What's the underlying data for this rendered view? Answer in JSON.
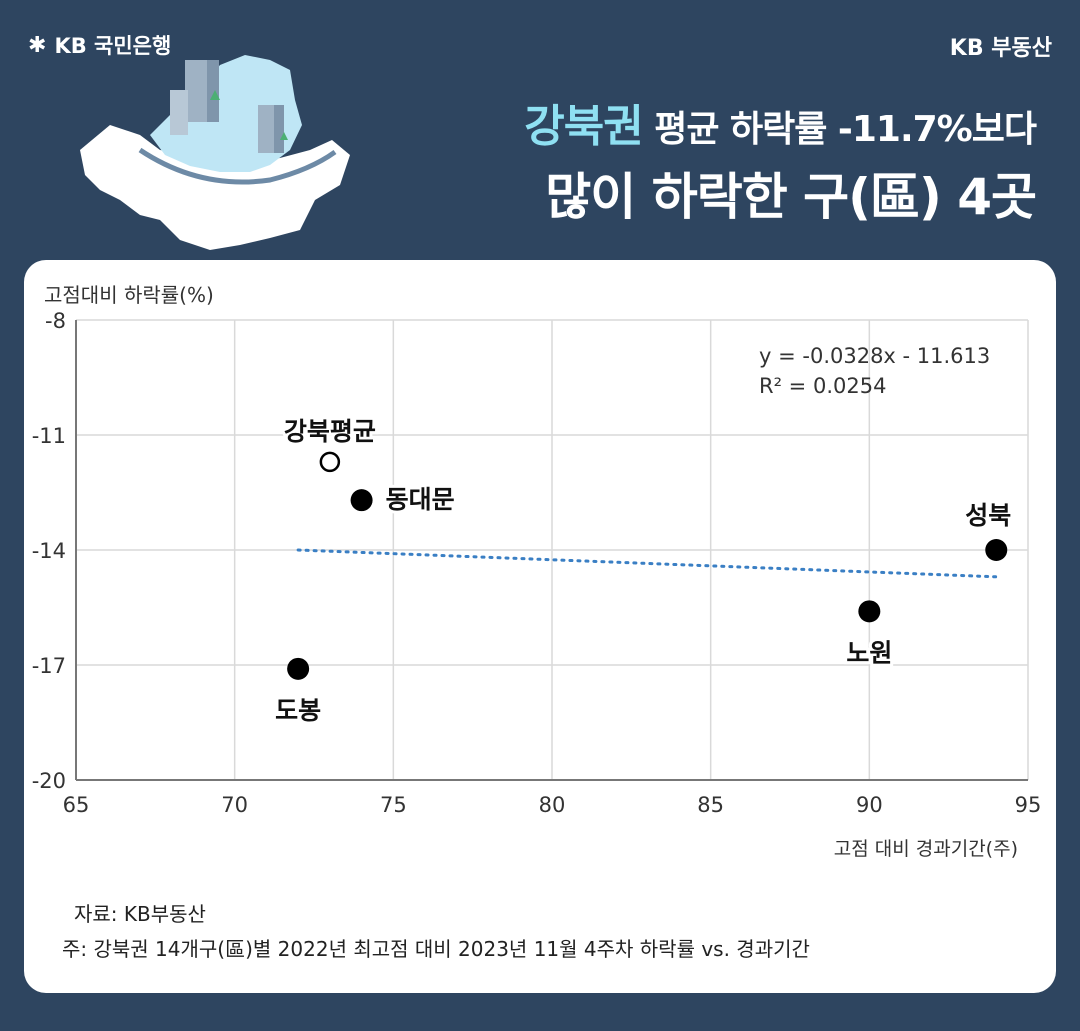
{
  "header": {
    "logo_text": "KB 국민은행",
    "brand": "KB 부동산",
    "title_highlight": "강북권",
    "title_line1_rest": " 평균 하락률 -11.7%보다",
    "title_line2": "많이 하락한 구(區) 4곳"
  },
  "colors": {
    "background": "#2e4560",
    "highlight": "#8fe0f2",
    "trendline": "#3a7fc4",
    "point": "#000000"
  },
  "chart_data": {
    "type": "scatter",
    "ylabel": "고점대비 하락률(%)",
    "xlabel": "고점 대비 경과기간(주)",
    "xlim": [
      65,
      95
    ],
    "ylim": [
      -20,
      -8
    ],
    "x_ticks": [
      65,
      70,
      75,
      80,
      85,
      90,
      95
    ],
    "y_ticks": [
      -8,
      -11,
      -14,
      -17,
      -20
    ],
    "grid": true,
    "points": [
      {
        "label": "강북평균",
        "x": 73,
        "y": -11.7,
        "hollow": true
      },
      {
        "label": "동대문",
        "x": 74,
        "y": -12.7,
        "hollow": false
      },
      {
        "label": "도봉",
        "x": 72,
        "y": -17.1,
        "hollow": false
      },
      {
        "label": "노원",
        "x": 90,
        "y": -15.6,
        "hollow": false
      },
      {
        "label": "성북",
        "x": 94,
        "y": -14.0,
        "hollow": false
      }
    ],
    "trendline": {
      "x_start": 72,
      "x_end": 94
    },
    "equation": "y = -0.0328x - 11.613",
    "r_squared": "R² = 0.0254"
  },
  "footer": {
    "source": "자료: KB부동산",
    "note": "주: 강북권 14개구(區)별 2022년 최고점 대비 2023년 11월 4주차 하락률 vs. 경과기간"
  }
}
